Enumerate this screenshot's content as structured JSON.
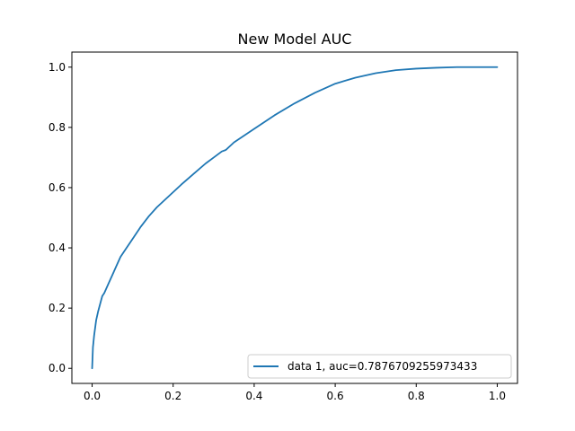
{
  "chart_data": {
    "type": "line",
    "title": "New Model AUC",
    "xlabel": "",
    "ylabel": "",
    "xlim": [
      -0.05,
      1.05
    ],
    "ylim": [
      -0.05,
      1.05
    ],
    "grid": false,
    "legend_position": "lower-right",
    "x_ticks": [
      "0.0",
      "0.2",
      "0.4",
      "0.6",
      "0.8",
      "1.0"
    ],
    "y_ticks": [
      "0.0",
      "0.2",
      "0.4",
      "0.6",
      "0.8",
      "1.0"
    ],
    "series": [
      {
        "name": "data 1, auc=0.7876709255973433",
        "color": "#1f77b4",
        "x": [
          0.0,
          0.002,
          0.005,
          0.01,
          0.015,
          0.02,
          0.025,
          0.03,
          0.04,
          0.05,
          0.06,
          0.07,
          0.08,
          0.1,
          0.12,
          0.14,
          0.16,
          0.18,
          0.2,
          0.22,
          0.25,
          0.28,
          0.3,
          0.32,
          0.33,
          0.35,
          0.4,
          0.45,
          0.5,
          0.55,
          0.6,
          0.65,
          0.7,
          0.75,
          0.8,
          0.85,
          0.9,
          0.95,
          1.0
        ],
        "y": [
          0.0,
          0.07,
          0.11,
          0.16,
          0.19,
          0.215,
          0.24,
          0.25,
          0.28,
          0.31,
          0.34,
          0.37,
          0.39,
          0.43,
          0.47,
          0.505,
          0.535,
          0.56,
          0.585,
          0.61,
          0.645,
          0.68,
          0.7,
          0.72,
          0.725,
          0.75,
          0.795,
          0.84,
          0.88,
          0.915,
          0.945,
          0.965,
          0.98,
          0.99,
          0.995,
          0.998,
          1.0,
          1.0,
          1.0
        ]
      }
    ]
  }
}
